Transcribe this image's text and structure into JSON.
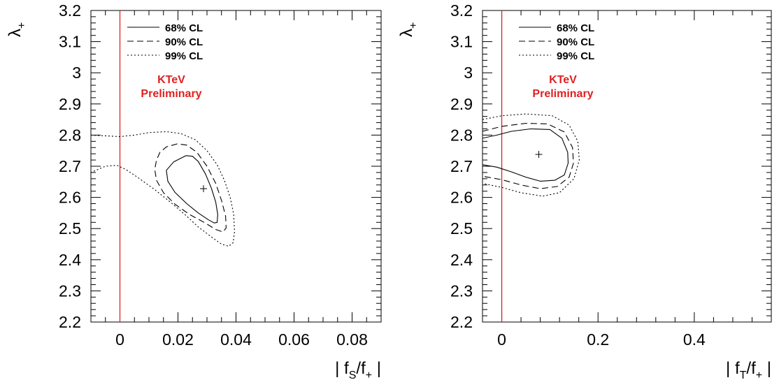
{
  "chart_data": [
    {
      "type": "contour",
      "xlabel": {
        "pre": "| f",
        "sub1": "S",
        "mid": "/f",
        "sub2": "+",
        "post": " |"
      },
      "ylabel": {
        "main": "λ",
        "sub": "+"
      },
      "xlim": [
        -0.01,
        0.09
      ],
      "ylim": [
        2.2,
        3.2
      ],
      "xticks": [
        0,
        0.02,
        0.04,
        0.06,
        0.08
      ],
      "xtick_labels": [
        "0",
        "0.02",
        "0.04",
        "0.06",
        "0.08"
      ],
      "yticks": [
        2.2,
        2.3,
        2.4,
        2.5,
        2.6,
        2.7,
        2.8,
        2.9,
        3.0,
        3.1,
        3.2
      ],
      "ytick_labels": [
        "2.2",
        "2.3",
        "2.4",
        "2.5",
        "2.6",
        "2.7",
        "2.8",
        "2.9",
        "3",
        "3.1",
        "3.2"
      ],
      "best_fit": {
        "x": 0.0288,
        "y": 2.628
      },
      "reference_line": {
        "x": 0,
        "color": "#e02020"
      },
      "legend_position": "top-left",
      "annotation": [
        "KTeV",
        "Preliminary"
      ],
      "annotation_color": "#e02020",
      "contours": [
        {
          "name": "68% CL",
          "style": "solid",
          "points": [
            [
              0.0228,
              2.734
            ],
            [
              0.0185,
              2.714
            ],
            [
              0.016,
              2.687
            ],
            [
              0.0165,
              2.652
            ],
            [
              0.019,
              2.616
            ],
            [
              0.023,
              2.58
            ],
            [
              0.027,
              2.55
            ],
            [
              0.0305,
              2.528
            ],
            [
              0.0325,
              2.518
            ],
            [
              0.0335,
              2.52
            ],
            [
              0.0337,
              2.545
            ],
            [
              0.033,
              2.585
            ],
            [
              0.0315,
              2.63
            ],
            [
              0.0295,
              2.675
            ],
            [
              0.027,
              2.715
            ],
            [
              0.025,
              2.732
            ],
            [
              0.0228,
              2.734
            ]
          ]
        },
        {
          "name": "90% CL",
          "style": "dashed",
          "points": [
            [
              0.0198,
              2.772
            ],
            [
              0.016,
              2.762
            ],
            [
              0.0138,
              2.745
            ],
            [
              0.0126,
              2.72
            ],
            [
              0.012,
              2.69
            ],
            [
              0.0126,
              2.655
            ],
            [
              0.015,
              2.615
            ],
            [
              0.019,
              2.578
            ],
            [
              0.024,
              2.545
            ],
            [
              0.029,
              2.52
            ],
            [
              0.033,
              2.497
            ],
            [
              0.0355,
              2.489
            ],
            [
              0.0366,
              2.502
            ],
            [
              0.0364,
              2.54
            ],
            [
              0.035,
              2.59
            ],
            [
              0.033,
              2.645
            ],
            [
              0.03,
              2.7
            ],
            [
              0.0265,
              2.745
            ],
            [
              0.023,
              2.768
            ],
            [
              0.0198,
              2.772
            ]
          ]
        },
        {
          "name": "99% CL",
          "style": "dotted",
          "points": [
            [
              -0.01,
              2.8
            ],
            [
              -0.004,
              2.797
            ],
            [
              0.0,
              2.795
            ],
            [
              0.005,
              2.8
            ],
            [
              0.01,
              2.808
            ],
            [
              0.016,
              2.811
            ],
            [
              0.021,
              2.805
            ],
            [
              0.026,
              2.785
            ],
            [
              0.03,
              2.75
            ],
            [
              0.0335,
              2.705
            ],
            [
              0.036,
              2.655
            ],
            [
              0.038,
              2.6
            ],
            [
              0.0392,
              2.545
            ],
            [
              0.0395,
              2.49
            ],
            [
              0.039,
              2.455
            ],
            [
              0.0375,
              2.443
            ],
            [
              0.035,
              2.45
            ],
            [
              0.032,
              2.47
            ],
            [
              0.027,
              2.505
            ],
            [
              0.023,
              2.54
            ],
            [
              0.018,
              2.58
            ],
            [
              0.012,
              2.625
            ],
            [
              0.006,
              2.665
            ],
            [
              0.002,
              2.69
            ],
            [
              -0.001,
              2.703
            ],
            [
              -0.005,
              2.7
            ],
            [
              -0.01,
              2.68
            ]
          ]
        }
      ]
    },
    {
      "type": "contour",
      "xlabel": {
        "pre": "| f",
        "sub1": "T",
        "mid": "/f",
        "sub2": "+",
        "post": " |"
      },
      "ylabel": {
        "main": "λ",
        "sub": "+"
      },
      "xlim": [
        -0.04,
        0.56
      ],
      "ylim": [
        2.2,
        3.2
      ],
      "xticks": [
        0,
        0.2,
        0.4
      ],
      "xtick_labels": [
        "0",
        "0.2",
        "0.4"
      ],
      "yticks": [
        2.2,
        2.3,
        2.4,
        2.5,
        2.6,
        2.7,
        2.8,
        2.9,
        3.0,
        3.1,
        3.2
      ],
      "ytick_labels": [
        "2.2",
        "2.3",
        "2.4",
        "2.5",
        "2.6",
        "2.7",
        "2.8",
        "2.9",
        "3",
        "3.1",
        "3.2"
      ],
      "best_fit": {
        "x": 0.077,
        "y": 2.738
      },
      "reference_line": {
        "x": 0,
        "color": "#e02020"
      },
      "legend_position": "top-left",
      "annotation": [
        "KTeV",
        "Preliminary"
      ],
      "annotation_color": "#e02020",
      "contours": [
        {
          "name": "68% CL",
          "style": "solid",
          "points": [
            [
              -0.04,
              2.79
            ],
            [
              -0.01,
              2.8
            ],
            [
              0.02,
              2.812
            ],
            [
              0.06,
              2.82
            ],
            [
              0.1,
              2.818
            ],
            [
              0.125,
              2.79
            ],
            [
              0.137,
              2.745
            ],
            [
              0.138,
              2.71
            ],
            [
              0.13,
              2.672
            ],
            [
              0.11,
              2.655
            ],
            [
              0.08,
              2.652
            ],
            [
              0.05,
              2.665
            ],
            [
              0.02,
              2.682
            ],
            [
              -0.01,
              2.697
            ],
            [
              -0.04,
              2.705
            ]
          ]
        },
        {
          "name": "90% CL",
          "style": "dashed",
          "points": [
            [
              -0.04,
              2.812
            ],
            [
              0.0,
              2.828
            ],
            [
              0.05,
              2.838
            ],
            [
              0.095,
              2.836
            ],
            [
              0.13,
              2.81
            ],
            [
              0.147,
              2.76
            ],
            [
              0.149,
              2.71
            ],
            [
              0.14,
              2.665
            ],
            [
              0.115,
              2.635
            ],
            [
              0.08,
              2.628
            ],
            [
              0.04,
              2.64
            ],
            [
              0.0,
              2.657
            ],
            [
              -0.04,
              2.668
            ]
          ]
        },
        {
          "name": "99% CL",
          "style": "dotted",
          "points": [
            [
              -0.04,
              2.85
            ],
            [
              0.0,
              2.862
            ],
            [
              0.05,
              2.868
            ],
            [
              0.105,
              2.862
            ],
            [
              0.14,
              2.832
            ],
            [
              0.158,
              2.78
            ],
            [
              0.161,
              2.72
            ],
            [
              0.15,
              2.66
            ],
            [
              0.12,
              2.615
            ],
            [
              0.085,
              2.604
            ],
            [
              0.04,
              2.615
            ],
            [
              0.0,
              2.632
            ],
            [
              -0.04,
              2.645
            ]
          ]
        }
      ]
    }
  ]
}
